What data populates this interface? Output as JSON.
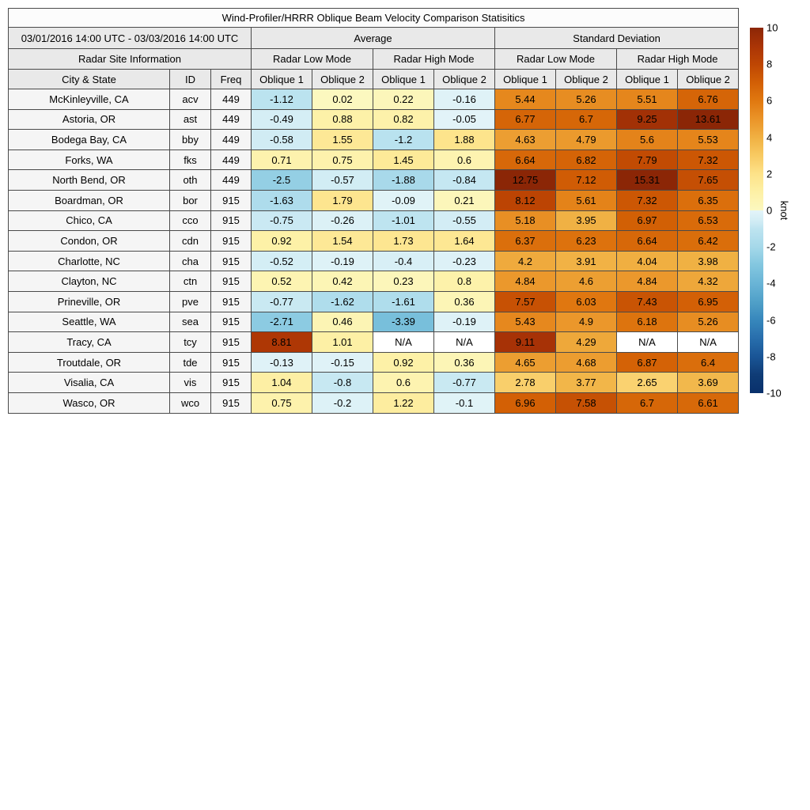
{
  "title": "Wind-Profiler/HRRR Oblique Beam Velocity Comparison Statisitics",
  "table": {
    "period": "03/01/2016 14:00 UTC - 03/03/2016 14:00 UTC",
    "site_info": "Radar Site Information",
    "group_headers": {
      "average": "Average",
      "stddev": "Standard Deviation"
    },
    "mode_headers": {
      "low": "Radar Low Mode",
      "high": "Radar High Mode"
    },
    "col_headers": {
      "city": "City & State",
      "id": "ID",
      "freq": "Freq",
      "oblique1": "Oblique 1",
      "oblique2": "Oblique 2"
    },
    "na_label": "N/A"
  },
  "colorbar": {
    "label": "knot",
    "min": -10,
    "max": 10,
    "ticks": [
      10,
      8,
      6,
      4,
      2,
      0,
      -2,
      -4,
      -6,
      -8,
      -10
    ],
    "colormap": {
      "positive": [
        [
          0,
          "#fcf8c0"
        ],
        [
          1,
          "#fdf0a5"
        ],
        [
          2,
          "#fde289"
        ],
        [
          3,
          "#f8ca62"
        ],
        [
          4,
          "#f0b042"
        ],
        [
          5,
          "#ea9428"
        ],
        [
          6,
          "#e07810"
        ],
        [
          7,
          "#d25f05"
        ],
        [
          8,
          "#be4603"
        ],
        [
          9,
          "#aa3406"
        ],
        [
          10,
          "#8b2606"
        ]
      ],
      "negative": [
        [
          0,
          "#e3f4f8"
        ],
        [
          0.5,
          "#d5eef5"
        ],
        [
          1,
          "#bee4f0"
        ],
        [
          2,
          "#a5d8e9"
        ],
        [
          3,
          "#82c6df"
        ],
        [
          4,
          "#69b4d6"
        ],
        [
          5,
          "#50a0c8"
        ],
        [
          6,
          "#3787bc"
        ],
        [
          7,
          "#286eac"
        ],
        [
          8,
          "#195596"
        ],
        [
          9,
          "#0f3c76"
        ],
        [
          10,
          "#08306b"
        ]
      ]
    }
  },
  "chart_data": {
    "type": "heatmap",
    "title": "Wind-Profiler/HRRR Oblique Beam Velocity Comparison Statisitics",
    "unit": "knot",
    "value_range": [
      -10,
      10
    ],
    "legend_position": "right",
    "columns": [
      "Average Low Oblique 1",
      "Average Low Oblique 2",
      "Average High Oblique 1",
      "Average High Oblique 2",
      "StdDev Low Oblique 1",
      "StdDev Low Oblique 2",
      "StdDev High Oblique 1",
      "StdDev High Oblique 2"
    ],
    "rows": [
      {
        "city": "McKinleyville, CA",
        "id": "acv",
        "freq": "449",
        "values": [
          -1.12,
          0.02,
          0.22,
          -0.16,
          5.44,
          5.26,
          5.51,
          6.76
        ]
      },
      {
        "city": "Astoria, OR",
        "id": "ast",
        "freq": "449",
        "values": [
          -0.49,
          0.88,
          0.82,
          -0.05,
          6.77,
          6.7,
          9.25,
          13.61
        ]
      },
      {
        "city": "Bodega Bay, CA",
        "id": "bby",
        "freq": "449",
        "values": [
          -0.58,
          1.55,
          -1.2,
          1.88,
          4.63,
          4.79,
          5.6,
          5.53
        ]
      },
      {
        "city": "Forks, WA",
        "id": "fks",
        "freq": "449",
        "values": [
          0.71,
          0.75,
          1.45,
          0.6,
          6.64,
          6.82,
          7.79,
          7.32
        ]
      },
      {
        "city": "North Bend, OR",
        "id": "oth",
        "freq": "449",
        "values": [
          -2.5,
          -0.57,
          -1.88,
          -0.84,
          12.75,
          7.12,
          15.31,
          7.65
        ]
      },
      {
        "city": "Boardman, OR",
        "id": "bor",
        "freq": "915",
        "values": [
          -1.63,
          1.79,
          -0.09,
          0.21,
          8.12,
          5.61,
          7.32,
          6.35
        ]
      },
      {
        "city": "Chico, CA",
        "id": "cco",
        "freq": "915",
        "values": [
          -0.75,
          -0.26,
          -1.01,
          -0.55,
          5.18,
          3.95,
          6.97,
          6.53
        ]
      },
      {
        "city": "Condon, OR",
        "id": "cdn",
        "freq": "915",
        "values": [
          0.92,
          1.54,
          1.73,
          1.64,
          6.37,
          6.23,
          6.64,
          6.42
        ]
      },
      {
        "city": "Charlotte, NC",
        "id": "cha",
        "freq": "915",
        "values": [
          -0.52,
          -0.19,
          -0.4,
          -0.23,
          4.2,
          3.91,
          4.04,
          3.98
        ]
      },
      {
        "city": "Clayton, NC",
        "id": "ctn",
        "freq": "915",
        "values": [
          0.52,
          0.42,
          0.23,
          0.8,
          4.84,
          4.6,
          4.84,
          4.32
        ]
      },
      {
        "city": "Prineville, OR",
        "id": "pve",
        "freq": "915",
        "values": [
          -0.77,
          -1.62,
          -1.61,
          0.36,
          7.57,
          6.03,
          7.43,
          6.95
        ]
      },
      {
        "city": "Seattle, WA",
        "id": "sea",
        "freq": "915",
        "values": [
          -2.71,
          0.46,
          -3.39,
          -0.19,
          5.43,
          4.9,
          6.18,
          5.26
        ]
      },
      {
        "city": "Tracy, CA",
        "id": "tcy",
        "freq": "915",
        "values": [
          8.81,
          1.01,
          null,
          null,
          9.11,
          4.29,
          null,
          null
        ]
      },
      {
        "city": "Troutdale, OR",
        "id": "tde",
        "freq": "915",
        "values": [
          -0.13,
          -0.15,
          0.92,
          0.36,
          4.65,
          4.68,
          6.87,
          6.4
        ]
      },
      {
        "city": "Visalia, CA",
        "id": "vis",
        "freq": "915",
        "values": [
          1.04,
          -0.8,
          0.6,
          -0.77,
          2.78,
          3.77,
          2.65,
          3.69
        ]
      },
      {
        "city": "Wasco, OR",
        "id": "wco",
        "freq": "915",
        "values": [
          0.75,
          -0.2,
          1.22,
          -0.1,
          6.96,
          7.58,
          6.7,
          6.61
        ]
      }
    ]
  }
}
